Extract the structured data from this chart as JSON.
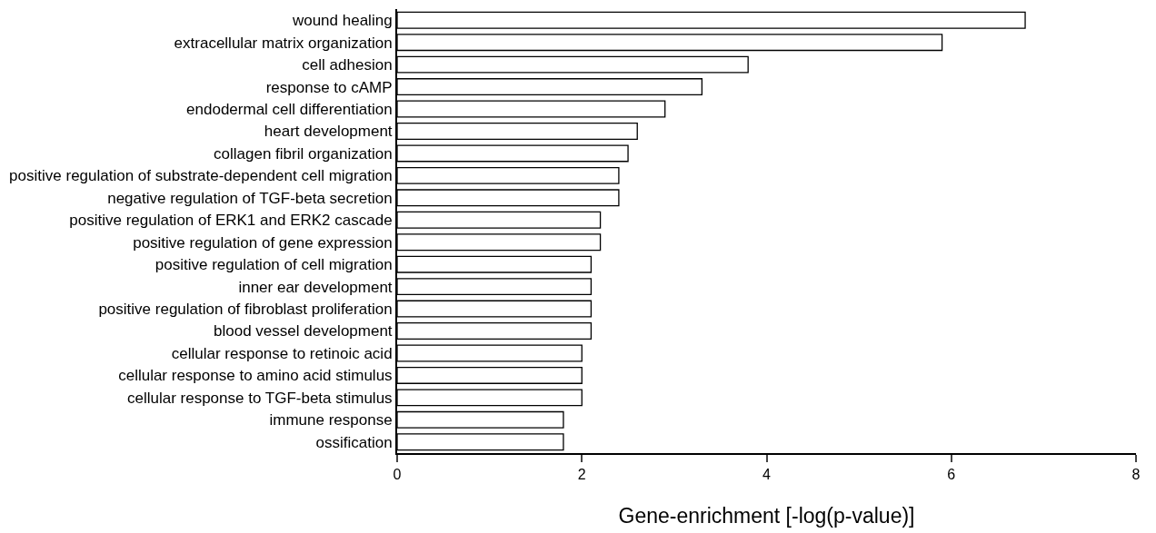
{
  "chart_data": {
    "type": "bar",
    "orientation": "horizontal",
    "xlabel": "Gene-enrichment [-log(p-value)]",
    "categories": [
      "wound healing",
      "extracellular matrix organization",
      "cell adhesion",
      "response to cAMP",
      "endodermal cell differentiation",
      "heart development",
      "collagen fibril organization",
      "positive regulation of substrate-dependent cell migration",
      "negative regulation of TGF-beta secretion",
      "positive regulation of ERK1 and ERK2 cascade",
      "positive regulation of gene expression",
      "positive regulation of cell migration",
      "inner ear development",
      "positive regulation of fibroblast proliferation",
      "blood vessel development",
      "cellular response to retinoic acid",
      "cellular response to amino acid stimulus",
      "cellular response to TGF-beta stimulus",
      "immune response",
      "ossification"
    ],
    "values": [
      6.8,
      5.9,
      3.8,
      3.3,
      2.9,
      2.6,
      2.5,
      2.4,
      2.4,
      2.2,
      2.2,
      2.1,
      2.1,
      2.1,
      2.1,
      2.0,
      2.0,
      2.0,
      1.8,
      1.8
    ],
    "color": "#ffffff",
    "xlim": [
      0,
      8
    ],
    "xticks": [
      0,
      2,
      4,
      6,
      8
    ],
    "grid": false,
    "legend": false
  }
}
